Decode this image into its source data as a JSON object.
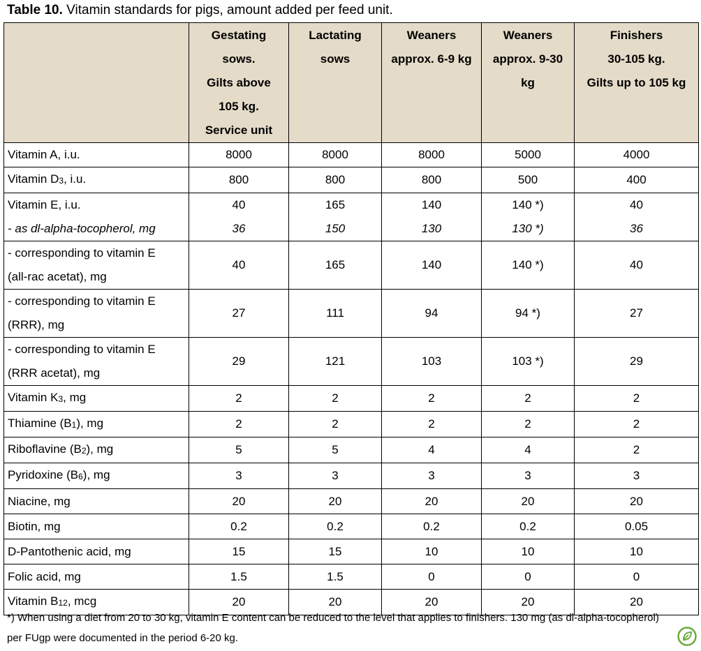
{
  "title": {
    "bold": "Table 10.",
    "rest": " Vitamin standards for pigs, amount added per feed unit."
  },
  "headers": [
    [
      "Gestating",
      "sows.",
      "Gilts above",
      "105 kg.",
      "Service unit"
    ],
    [
      "Lactating",
      "sows"
    ],
    [
      "Weaners",
      "approx. 6-9 kg"
    ],
    [
      "Weaners",
      "approx. 9-30",
      "kg"
    ],
    [
      "Finishers",
      "30-105 kg.",
      "Gilts up to 105 kg"
    ]
  ],
  "rows": {
    "vitA": {
      "label": "Vitamin A, i.u.",
      "values": [
        "8000",
        "8000",
        "8000",
        "5000",
        "4000"
      ]
    },
    "vitD": {
      "label_pre": "Vitamin D",
      "label_sub": "3",
      "label_post": ", i.u.",
      "values": [
        "800",
        "800",
        "800",
        "500",
        "400"
      ]
    },
    "vitE": {
      "label": "Vitamin E, i.u.",
      "values": [
        "40",
        "165",
        "140",
        "140 *)",
        "40"
      ]
    },
    "vitE_dl": {
      "label": "- as dl-alpha-tocopherol, mg",
      "values": [
        "36",
        "150",
        "130",
        "130 *)",
        "36"
      ]
    },
    "vitE_allrac": {
      "label_1": "- corresponding to vitamin E",
      "label_2": "(all-rac acetat), mg",
      "values": [
        "40",
        "165",
        "140",
        "140 *)",
        "40"
      ]
    },
    "vitE_rrr": {
      "label_1": "- corresponding to vitamin E",
      "label_2": "(RRR), mg",
      "values": [
        "27",
        "111",
        "94",
        "94 *)",
        "27"
      ]
    },
    "vitE_rrracetat": {
      "label_1": "- corresponding to vitamin E",
      "label_2": "(RRR acetat), mg",
      "values": [
        "29",
        "121",
        "103",
        "103 *)",
        "29"
      ]
    },
    "vitK": {
      "label_pre": "Vitamin K",
      "label_sub": "3",
      "label_post": ", mg",
      "values": [
        "2",
        "2",
        "2",
        "2",
        "2"
      ]
    },
    "thiamine": {
      "label_pre": "Thiamine (B",
      "label_sub": "1",
      "label_post": "), mg",
      "values": [
        "2",
        "2",
        "2",
        "2",
        "2"
      ]
    },
    "riboflavine": {
      "label_pre": "Riboflavine (B",
      "label_sub": "2",
      "label_post": "), mg",
      "values": [
        "5",
        "5",
        "4",
        "4",
        "2"
      ]
    },
    "pyridoxine": {
      "label_pre": "Pyridoxine (B",
      "label_sub": "6",
      "label_post": "), mg",
      "values": [
        "3",
        "3",
        "3",
        "3",
        "3"
      ]
    },
    "niacine": {
      "label": "Niacine, mg",
      "values": [
        "20",
        "20",
        "20",
        "20",
        "20"
      ]
    },
    "biotin": {
      "label": "Biotin, mg",
      "values": [
        "0.2",
        "0.2",
        "0.2",
        "0.2",
        "0.05"
      ]
    },
    "pantothenic": {
      "label": "D-Pantothenic acid, mg",
      "values": [
        "15",
        "15",
        "10",
        "10",
        "10"
      ]
    },
    "folic": {
      "label": "Folic acid, mg",
      "values": [
        "1.5",
        "1.5",
        "0",
        "0",
        "0"
      ]
    },
    "vitB12": {
      "label_pre": "Vitamin B",
      "label_sub": "12",
      "label_post": ", mcg",
      "values": [
        "20",
        "20",
        "20",
        "20",
        "20"
      ]
    }
  },
  "footnote": "*) When using a diet from 20 to 30 kg, vitamin E content can be reduced to the level that applies to finishers. 130 mg (as dl-alpha-tocopherol) per FUgp were documented in the period 6-20 kg.",
  "colors": {
    "header_bg": "#e4dbc8",
    "logo_green": "#6aab3c"
  },
  "logo_icon": "leaf-badge-icon"
}
